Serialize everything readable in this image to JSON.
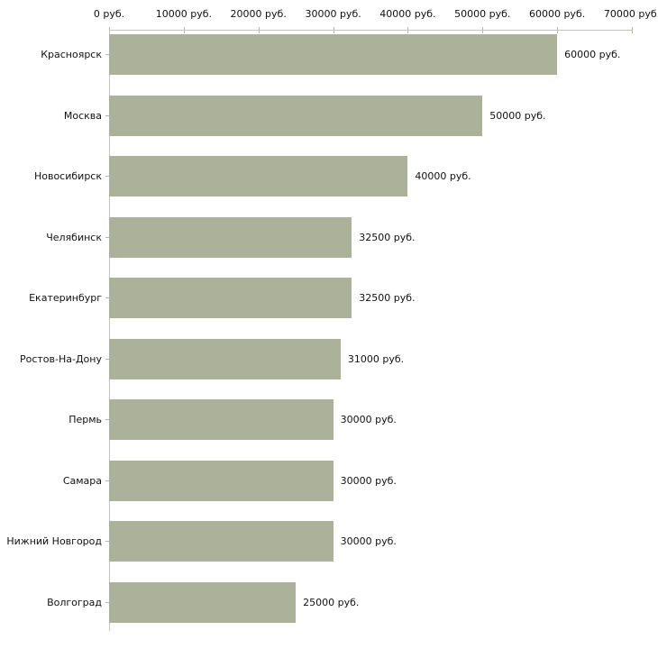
{
  "chart_data": {
    "type": "bar",
    "orientation": "horizontal",
    "title": "",
    "xlabel": "",
    "ylabel": "",
    "unit": "руб.",
    "xlim": [
      0,
      70000
    ],
    "x_tick_step": 10000,
    "grid": false,
    "legend": false,
    "x_tick_labels": [
      "0 руб.",
      "10000 руб.",
      "20000 руб.",
      "30000 руб.",
      "40000 руб.",
      "50000 руб.",
      "60000 руб.",
      "70000 руб."
    ],
    "categories": [
      "Красноярск",
      "Москва",
      "Новосибирск",
      "Челябинск",
      "Екатеринбург",
      "Ростов-На-Дону",
      "Пермь",
      "Самара",
      "Нижний Новгород",
      "Волгоград"
    ],
    "values": [
      60000,
      50000,
      40000,
      32500,
      32500,
      31000,
      30000,
      30000,
      30000,
      25000
    ],
    "value_labels": [
      "60000 руб.",
      "50000 руб.",
      "40000 руб.",
      "32500 руб.",
      "32500 руб.",
      "31000 руб.",
      "30000 руб.",
      "30000 руб.",
      "30000 руб.",
      "25000 руб."
    ],
    "colors": {
      "bar_fill": "#acb199",
      "axis_line": "#c4c4c4",
      "tick_mark": "#b8b59c",
      "text": "#111111",
      "background": "#ffffff"
    }
  }
}
